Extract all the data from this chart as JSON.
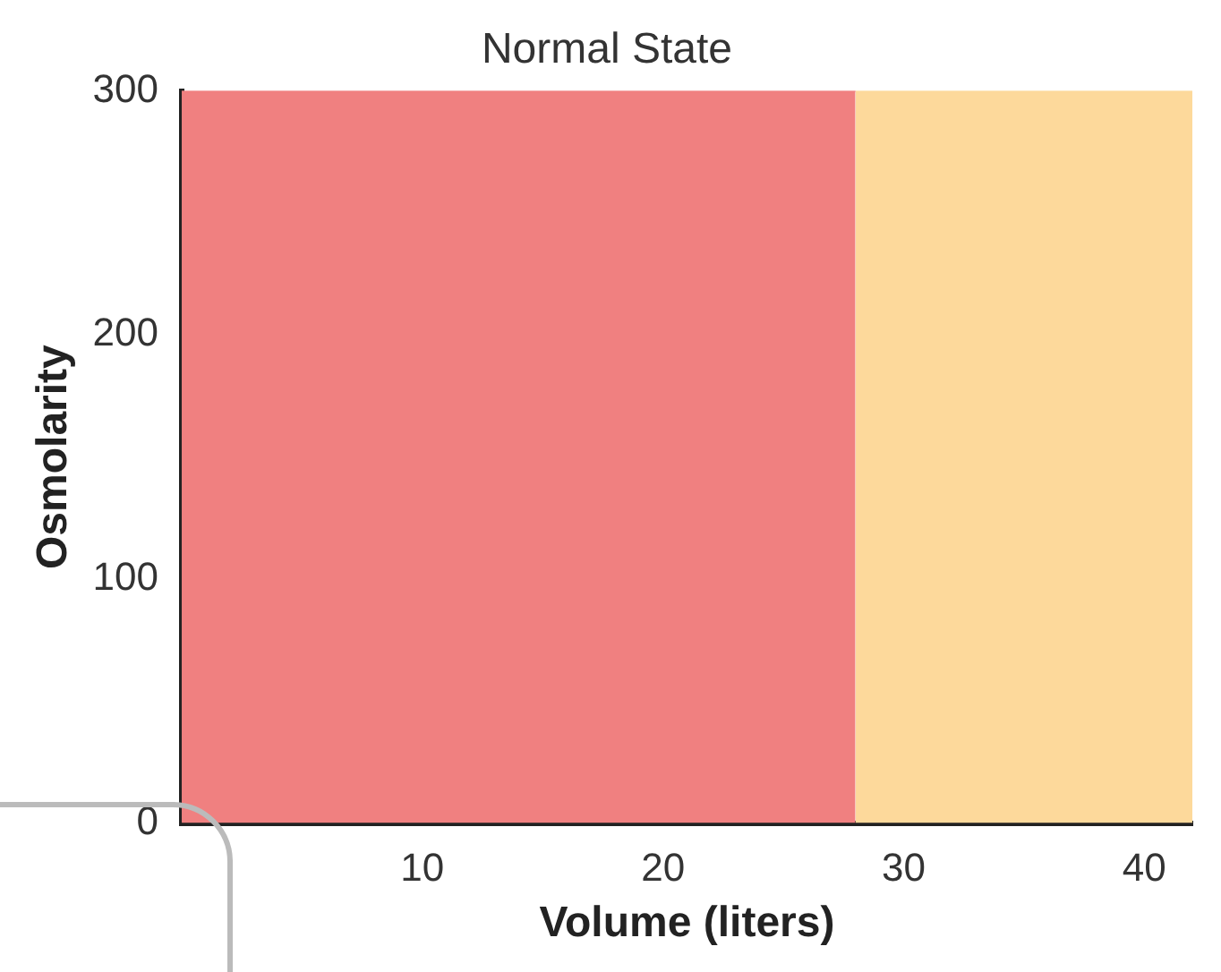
{
  "chart_data": {
    "type": "area",
    "title": "Normal State",
    "xlabel": "Volume (liters)",
    "ylabel": "Osmolarity",
    "series": [
      {
        "color": "#f08080",
        "x": [
          0,
          28
        ],
        "values": [
          300,
          300
        ]
      },
      {
        "color": "#fdd99b",
        "x": [
          28,
          42
        ],
        "values": [
          300,
          300
        ]
      }
    ],
    "xlim": [
      0,
      42
    ],
    "xticks": [
      {
        "value": 0,
        "label": null
      },
      10,
      20,
      30,
      40
    ],
    "ylim": [
      0,
      300
    ],
    "yticks": [
      0,
      100,
      200,
      300
    ],
    "grid": false
  }
}
